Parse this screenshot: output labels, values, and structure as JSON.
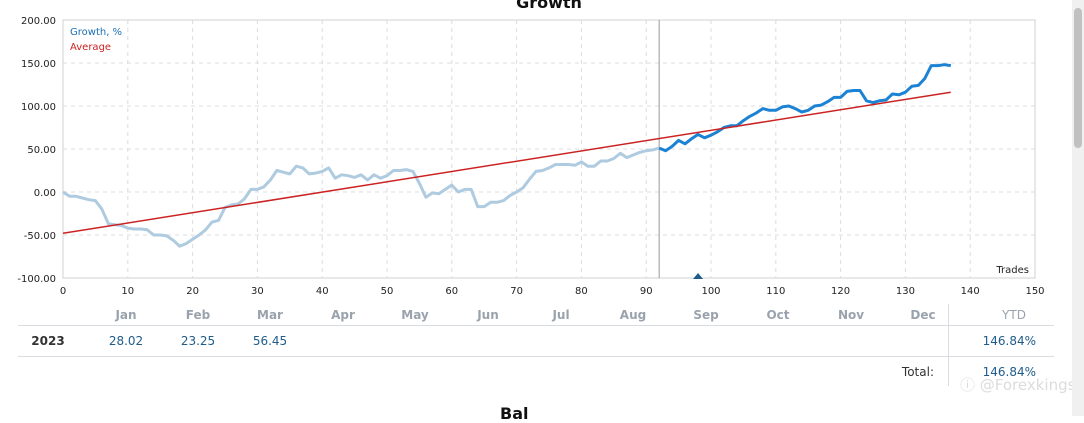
{
  "chart_data": {
    "type": "line",
    "title": "Growth",
    "corner_label": "Trades",
    "legend": [
      "Growth, %",
      "Average"
    ],
    "legend_position": "top-left",
    "xlim": [
      0,
      150
    ],
    "ylim": [
      -100,
      200
    ],
    "x_ticks": [
      "0",
      "10",
      "20",
      "30",
      "40",
      "50",
      "60",
      "70",
      "80",
      "90",
      "100",
      "110",
      "120",
      "130",
      "140",
      "150"
    ],
    "y_ticks": [
      "200.00",
      "150.00",
      "100.00",
      "50.00",
      "0.00",
      "-50.00",
      "-100.00"
    ],
    "grid": true,
    "divider_x": 92,
    "marker_x": 98,
    "series": [
      {
        "name": "Growth, %",
        "colors": {
          "history": "#aecbe0",
          "recent": "#1c82d4"
        },
        "points": [
          [
            0,
            0
          ],
          [
            1,
            -5
          ],
          [
            2,
            -5
          ],
          [
            3,
            -7
          ],
          [
            4,
            -9
          ],
          [
            5,
            -10
          ],
          [
            6,
            -20
          ],
          [
            7,
            -37
          ],
          [
            8,
            -38
          ],
          [
            9,
            -39
          ],
          [
            10,
            -42
          ],
          [
            11,
            -43
          ],
          [
            12,
            -43
          ],
          [
            13,
            -44
          ],
          [
            14,
            -50
          ],
          [
            15,
            -50
          ],
          [
            16,
            -51
          ],
          [
            17,
            -56
          ],
          [
            18,
            -63
          ],
          [
            19,
            -60
          ],
          [
            20,
            -55
          ],
          [
            21,
            -50
          ],
          [
            22,
            -44
          ],
          [
            23,
            -35
          ],
          [
            24,
            -33
          ],
          [
            25,
            -18
          ],
          [
            26,
            -15
          ],
          [
            27,
            -14
          ],
          [
            28,
            -8
          ],
          [
            29,
            3
          ],
          [
            30,
            3
          ],
          [
            31,
            6
          ],
          [
            32,
            14
          ],
          [
            33,
            25
          ],
          [
            34,
            23
          ],
          [
            35,
            21
          ],
          [
            36,
            30
          ],
          [
            37,
            28
          ],
          [
            38,
            21
          ],
          [
            39,
            22
          ],
          [
            40,
            24
          ],
          [
            41,
            28
          ],
          [
            42,
            16
          ],
          [
            43,
            20
          ],
          [
            44,
            19
          ],
          [
            45,
            17
          ],
          [
            46,
            20
          ],
          [
            47,
            14
          ],
          [
            48,
            20
          ],
          [
            49,
            16
          ],
          [
            50,
            19
          ],
          [
            51,
            25
          ],
          [
            52,
            25
          ],
          [
            53,
            26
          ],
          [
            54,
            24
          ],
          [
            55,
            10
          ],
          [
            56,
            -6
          ],
          [
            57,
            -1
          ],
          [
            58,
            -2
          ],
          [
            59,
            3
          ],
          [
            60,
            8
          ],
          [
            61,
            0
          ],
          [
            62,
            3
          ],
          [
            63,
            3
          ],
          [
            64,
            -17
          ],
          [
            65,
            -17
          ],
          [
            66,
            -12
          ],
          [
            67,
            -12
          ],
          [
            68,
            -10
          ],
          [
            69,
            -4
          ],
          [
            70,
            0
          ],
          [
            71,
            5
          ],
          [
            72,
            15
          ],
          [
            73,
            24
          ],
          [
            74,
            25
          ],
          [
            75,
            28
          ],
          [
            76,
            32
          ],
          [
            77,
            32
          ],
          [
            78,
            32
          ],
          [
            79,
            31
          ],
          [
            80,
            35
          ],
          [
            81,
            30
          ],
          [
            82,
            30
          ],
          [
            83,
            36
          ],
          [
            84,
            36
          ],
          [
            85,
            39
          ],
          [
            86,
            45
          ],
          [
            87,
            40
          ],
          [
            88,
            43
          ],
          [
            89,
            46
          ],
          [
            90,
            48
          ],
          [
            91,
            49
          ],
          [
            92,
            51
          ],
          [
            93,
            48
          ],
          [
            94,
            53
          ],
          [
            95,
            60
          ],
          [
            96,
            56
          ],
          [
            97,
            62
          ],
          [
            98,
            67
          ],
          [
            99,
            63
          ],
          [
            100,
            66
          ],
          [
            101,
            70
          ],
          [
            102,
            75
          ],
          [
            103,
            77
          ],
          [
            104,
            77
          ],
          [
            105,
            83
          ],
          [
            106,
            88
          ],
          [
            107,
            92
          ],
          [
            108,
            97
          ],
          [
            109,
            95
          ],
          [
            110,
            95
          ],
          [
            111,
            99
          ],
          [
            112,
            100
          ],
          [
            113,
            97
          ],
          [
            114,
            93
          ],
          [
            115,
            95
          ],
          [
            116,
            100
          ],
          [
            117,
            101
          ],
          [
            118,
            105
          ],
          [
            119,
            110
          ],
          [
            120,
            110
          ],
          [
            121,
            117
          ],
          [
            122,
            118
          ],
          [
            123,
            118
          ],
          [
            124,
            106
          ],
          [
            125,
            104
          ],
          [
            126,
            106
          ],
          [
            127,
            107
          ],
          [
            128,
            114
          ],
          [
            129,
            113
          ],
          [
            130,
            116
          ],
          [
            131,
            123
          ],
          [
            132,
            124
          ],
          [
            133,
            132
          ],
          [
            134,
            147
          ],
          [
            135,
            147
          ],
          [
            136,
            148
          ],
          [
            137,
            147
          ]
        ]
      },
      {
        "name": "Average",
        "color": "#cc2222",
        "points": [
          [
            0,
            -48
          ],
          [
            137,
            116
          ]
        ]
      }
    ]
  },
  "table": {
    "months": [
      "Jan",
      "Feb",
      "Mar",
      "Apr",
      "May",
      "Jun",
      "Jul",
      "Aug",
      "Sep",
      "Oct",
      "Nov",
      "Dec"
    ],
    "ytd_header": "YTD",
    "year": "2023",
    "monthly_values": [
      "28.02",
      "23.25",
      "56.45",
      "",
      "",
      "",
      "",
      "",
      "",
      "",
      "",
      ""
    ],
    "ytd_value": "146.84%",
    "total_label": "Total:",
    "total_value": "146.84%"
  },
  "watermark": "ⓘ @Forexkings",
  "next_section_title": "Bal"
}
